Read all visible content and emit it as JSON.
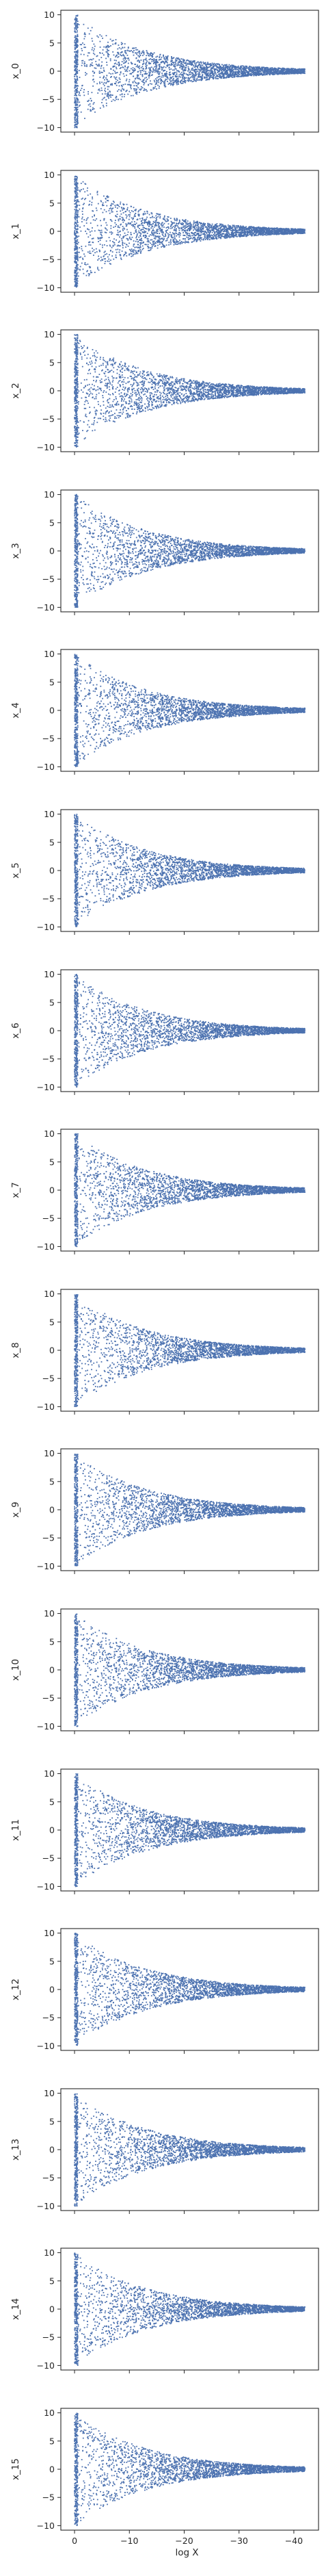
{
  "chart_data": {
    "type": "scatter",
    "layout": "vertical stack of 16 panels sharing the x axis",
    "xlabel": "log X",
    "xlim": [
      2.5,
      -44.5
    ],
    "ylim": [
      -10.8,
      10.8
    ],
    "x_ticks": [
      0,
      -10,
      -20,
      -30,
      -40
    ],
    "x_tick_labels": [
      "0",
      "−10",
      "−20",
      "−30",
      "−40"
    ],
    "y_ticks": [
      10,
      5,
      0,
      -5,
      -10
    ],
    "y_tick_labels": [
      "10",
      "5",
      "0",
      "−5",
      "−10"
    ],
    "marker_color": "#4c72b0",
    "grid": false,
    "legend": "none",
    "data_description": "x uniform in [-10, 10] at log X = 0, shrinking in spread as log X decreases to about -40",
    "panels": [
      {
        "ylabel": "x_0"
      },
      {
        "ylabel": "x_1"
      },
      {
        "ylabel": "x_2"
      },
      {
        "ylabel": "x_3"
      },
      {
        "ylabel": "x_4"
      },
      {
        "ylabel": "x_5"
      },
      {
        "ylabel": "x_6"
      },
      {
        "ylabel": "x_7"
      },
      {
        "ylabel": "x_8"
      },
      {
        "ylabel": "x_9"
      },
      {
        "ylabel": "x_10"
      },
      {
        "ylabel": "x_11"
      },
      {
        "ylabel": "x_12"
      },
      {
        "ylabel": "x_13"
      },
      {
        "ylabel": "x_14"
      },
      {
        "ylabel": "x_15"
      }
    ]
  }
}
